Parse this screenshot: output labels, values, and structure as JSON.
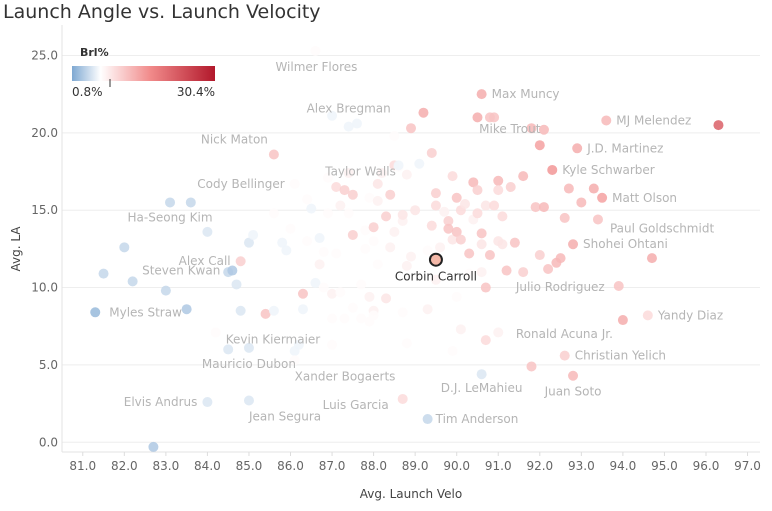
{
  "chart_data": {
    "type": "scatter",
    "title": "Launch Angle vs. Launch Velocity",
    "xlabel": "Avg. Launch Velo",
    "ylabel": "Avg. LA",
    "xlim": [
      80.5,
      97.3
    ],
    "ylim": [
      -0.5,
      26.0
    ],
    "x_ticks": [
      "81.0",
      "82.0",
      "83.0",
      "84.0",
      "85.0",
      "86.0",
      "87.0",
      "88.0",
      "89.0",
      "90.0",
      "91.0",
      "92.0",
      "93.0",
      "94.0",
      "95.0",
      "96.0",
      "97.0"
    ],
    "y_ticks": [
      "0.0",
      "5.0",
      "10.0",
      "15.0",
      "20.0",
      "25.0"
    ],
    "grid": "horizontal",
    "color_legend": {
      "title": "Brl%",
      "min_label": "0.8%",
      "max_label": "30.4%",
      "min": 0.8,
      "max": 30.4,
      "colors": [
        "#7ea8d2",
        "#ffffff",
        "#f18a8a",
        "#b2182b"
      ],
      "placement": "top-left"
    },
    "highlight": {
      "label": "Corbin Carroll",
      "x": 89.5,
      "y": 11.8,
      "brl": 12
    },
    "labeled_points": [
      {
        "label": "Wilmer Flores",
        "x": 86.6,
        "y": 25.3,
        "brl": 7
      },
      {
        "label": "Alex Bregman",
        "x": 87.4,
        "y": 20.4,
        "brl": 6
      },
      {
        "label": "Max Muncy",
        "x": 90.6,
        "y": 22.5,
        "brl": 14
      },
      {
        "label": "MJ Melendez",
        "x": 93.6,
        "y": 20.8,
        "brl": 13
      },
      {
        "label": "Mike Trout",
        "x": 92.0,
        "y": 19.2,
        "brl": 15
      },
      {
        "label": "Nick Maton",
        "x": 85.6,
        "y": 18.6,
        "brl": 12
      },
      {
        "label": "Taylor Walls",
        "x": 88.6,
        "y": 17.9,
        "brl": 6
      },
      {
        "label": "J.D. Martinez",
        "x": 92.9,
        "y": 19.0,
        "brl": 14
      },
      {
        "label": "Kyle Schwarber",
        "x": 92.3,
        "y": 17.6,
        "brl": 16
      },
      {
        "label": "Cody Bellinger",
        "x": 86.1,
        "y": 16.7,
        "brl": 7
      },
      {
        "label": "Matt Olson",
        "x": 93.5,
        "y": 15.8,
        "brl": 15
      },
      {
        "label": "Ha-Seong Kim",
        "x": 83.1,
        "y": 15.5,
        "brl": 4
      },
      {
        "label": "Paul Goldschmidt",
        "x": 93.4,
        "y": 14.4,
        "brl": 12
      },
      {
        "label": "Alex Call",
        "x": 84.8,
        "y": 11.7,
        "brl": 11
      },
      {
        "label": "Shohei Ohtani",
        "x": 92.8,
        "y": 12.8,
        "brl": 14
      },
      {
        "label": "Steven Kwan",
        "x": 84.6,
        "y": 11.1,
        "brl": 3
      },
      {
        "label": "Julio Rodriguez",
        "x": 93.9,
        "y": 10.1,
        "brl": 12
      },
      {
        "label": "Myles Straw",
        "x": 81.3,
        "y": 8.4,
        "brl": 2
      },
      {
        "label": "Yandy Diaz",
        "x": 94.6,
        "y": 8.2,
        "brl": 10
      },
      {
        "label": "Kevin Kiermaier",
        "x": 84.2,
        "y": 7.1,
        "brl": 7
      },
      {
        "label": "Ronald Acuna Jr.",
        "x": 94.0,
        "y": 7.9,
        "brl": 14
      },
      {
        "label": "Christian Yelich",
        "x": 92.6,
        "y": 5.6,
        "brl": 11
      },
      {
        "label": "Mauricio Dubon",
        "x": 85.0,
        "y": 6.1,
        "brl": 5
      },
      {
        "label": "Xander Bogaerts",
        "x": 86.1,
        "y": 5.3,
        "brl": 7
      },
      {
        "label": "D.J. LeMahieu",
        "x": 90.6,
        "y": 4.4,
        "brl": 5
      },
      {
        "label": "Juan Soto",
        "x": 92.8,
        "y": 4.3,
        "brl": 13
      },
      {
        "label": "Elvis Andrus",
        "x": 84.0,
        "y": 2.6,
        "brl": 5
      },
      {
        "label": "Luis Garcia",
        "x": 88.7,
        "y": 2.8,
        "brl": 10
      },
      {
        "label": "Jean Segura",
        "x": 85.0,
        "y": 2.7,
        "brl": 5
      },
      {
        "label": "Tim Anderson",
        "x": 89.3,
        "y": 1.5,
        "brl": 4
      }
    ],
    "other_points": [
      [
        82.7,
        -0.3,
        3
      ],
      [
        81.5,
        10.9,
        4
      ],
      [
        82.0,
        12.6,
        4
      ],
      [
        82.2,
        10.4,
        4
      ],
      [
        83.0,
        9.8,
        4
      ],
      [
        83.6,
        15.5,
        4
      ],
      [
        83.5,
        8.6,
        3
      ],
      [
        84.0,
        13.6,
        5
      ],
      [
        84.5,
        11.0,
        4
      ],
      [
        84.7,
        10.2,
        5
      ],
      [
        84.8,
        8.5,
        5
      ],
      [
        85.0,
        12.9,
        5
      ],
      [
        85.1,
        13.4,
        6
      ],
      [
        84.5,
        6.0,
        5
      ],
      [
        85.4,
        8.3,
        12
      ],
      [
        85.6,
        8.5,
        6
      ],
      [
        85.6,
        14.8,
        7
      ],
      [
        85.8,
        12.9,
        6
      ],
      [
        85.9,
        12.4,
        6
      ],
      [
        86.0,
        13.8,
        7
      ],
      [
        86.2,
        6.3,
        6
      ],
      [
        86.1,
        5.9,
        6
      ],
      [
        86.3,
        9.6,
        12
      ],
      [
        86.3,
        8.6,
        6
      ],
      [
        86.4,
        13.0,
        7
      ],
      [
        86.4,
        15.7,
        7
      ],
      [
        86.5,
        15.1,
        6
      ],
      [
        86.6,
        10.3,
        6
      ],
      [
        86.7,
        11.5,
        8
      ],
      [
        86.7,
        13.2,
        6
      ],
      [
        86.8,
        10.0,
        7
      ],
      [
        86.8,
        12.3,
        7
      ],
      [
        86.9,
        14.8,
        7
      ],
      [
        86.9,
        17.1,
        7
      ],
      [
        87.0,
        9.6,
        8
      ],
      [
        87.0,
        8.0,
        7
      ],
      [
        87.0,
        6.3,
        7
      ],
      [
        87.0,
        21.1,
        6
      ],
      [
        87.1,
        12.2,
        7
      ],
      [
        87.1,
        16.5,
        10
      ],
      [
        87.2,
        15.3,
        8
      ],
      [
        87.2,
        9.7,
        7
      ],
      [
        87.3,
        8.0,
        7
      ],
      [
        87.3,
        16.3,
        11
      ],
      [
        87.4,
        17.4,
        8
      ],
      [
        87.4,
        14.8,
        7
      ],
      [
        87.5,
        16.0,
        11
      ],
      [
        87.5,
        13.4,
        11
      ],
      [
        87.5,
        8.7,
        7
      ],
      [
        87.6,
        20.6,
        6
      ],
      [
        87.7,
        10.2,
        7
      ],
      [
        87.7,
        8.0,
        7
      ],
      [
        87.8,
        12.5,
        7
      ],
      [
        87.8,
        13.7,
        7
      ],
      [
        87.9,
        9.4,
        8
      ],
      [
        87.9,
        7.8,
        7
      ],
      [
        87.9,
        15.8,
        7
      ],
      [
        88.0,
        13.0,
        7
      ],
      [
        88.0,
        13.9,
        11
      ],
      [
        88.0,
        8.5,
        8
      ],
      [
        88.0,
        8.2,
        7
      ],
      [
        88.1,
        16.7,
        9
      ],
      [
        88.1,
        15.6,
        8
      ],
      [
        88.1,
        11.5,
        7
      ],
      [
        88.2,
        17.4,
        8
      ],
      [
        88.3,
        14.6,
        11
      ],
      [
        88.3,
        9.3,
        9
      ],
      [
        88.4,
        16.0,
        11
      ],
      [
        88.4,
        12.6,
        8
      ],
      [
        88.5,
        17.9,
        10
      ],
      [
        88.5,
        19.8,
        7
      ],
      [
        88.5,
        13.6,
        8
      ],
      [
        88.6,
        17.8,
        7
      ],
      [
        88.7,
        14.3,
        8
      ],
      [
        88.7,
        14.7,
        9
      ],
      [
        88.7,
        8.4,
        7
      ],
      [
        88.8,
        17.3,
        8
      ],
      [
        88.8,
        11.4,
        8
      ],
      [
        88.8,
        6.4,
        7
      ],
      [
        88.9,
        20.3,
        12
      ],
      [
        88.9,
        12.0,
        8
      ],
      [
        89.0,
        15.0,
        9
      ],
      [
        89.1,
        18.0,
        6
      ],
      [
        89.2,
        21.3,
        14
      ],
      [
        89.3,
        8.6,
        8
      ],
      [
        89.3,
        12.4,
        7
      ],
      [
        89.4,
        18.7,
        11
      ],
      [
        89.4,
        14.0,
        10
      ],
      [
        89.5,
        16.1,
        11
      ],
      [
        89.5,
        15.3,
        10
      ],
      [
        89.5,
        10.5,
        8
      ],
      [
        89.6,
        12.6,
        8
      ],
      [
        89.7,
        14.9,
        8
      ],
      [
        89.8,
        14.3,
        11
      ],
      [
        89.8,
        13.8,
        12
      ],
      [
        89.9,
        17.2,
        10
      ],
      [
        89.9,
        13.1,
        9
      ],
      [
        89.9,
        5.9,
        7
      ],
      [
        90.0,
        13.6,
        12
      ],
      [
        90.0,
        15.8,
        12
      ],
      [
        90.0,
        9.4,
        7
      ],
      [
        90.1,
        13.1,
        11
      ],
      [
        90.1,
        15.0,
        10
      ],
      [
        90.1,
        7.3,
        8
      ],
      [
        90.2,
        15.4,
        9
      ],
      [
        90.3,
        12.2,
        12
      ],
      [
        90.3,
        10.9,
        7
      ],
      [
        90.4,
        16.8,
        13
      ],
      [
        90.4,
        14.4,
        8
      ],
      [
        90.5,
        21.0,
        14
      ],
      [
        90.5,
        16.3,
        11
      ],
      [
        90.5,
        14.8,
        10
      ],
      [
        90.6,
        13.5,
        12
      ],
      [
        90.6,
        12.8,
        9
      ],
      [
        90.6,
        11.0,
        8
      ],
      [
        90.7,
        15.3,
        9
      ],
      [
        90.7,
        10.0,
        12
      ],
      [
        90.7,
        6.6,
        10
      ],
      [
        90.8,
        12.1,
        12
      ],
      [
        90.8,
        21.0,
        12
      ],
      [
        90.9,
        21.0,
        12
      ],
      [
        90.9,
        15.3,
        10
      ],
      [
        91.0,
        16.9,
        13
      ],
      [
        91.0,
        13.0,
        9
      ],
      [
        91.0,
        7.1,
        8
      ],
      [
        91.0,
        16.3,
        10
      ],
      [
        91.1,
        12.8,
        9
      ],
      [
        91.1,
        14.6,
        10
      ],
      [
        91.2,
        11.1,
        12
      ],
      [
        91.3,
        16.5,
        11
      ],
      [
        91.4,
        12.9,
        12
      ],
      [
        91.6,
        11.0,
        11
      ],
      [
        91.6,
        17.2,
        13
      ],
      [
        91.8,
        4.9,
        12
      ],
      [
        91.8,
        20.3,
        13
      ],
      [
        91.9,
        15.2,
        12
      ],
      [
        92.0,
        12.1,
        11
      ],
      [
        92.1,
        15.2,
        13
      ],
      [
        92.1,
        20.2,
        13
      ],
      [
        92.2,
        11.2,
        12
      ],
      [
        92.4,
        11.6,
        13
      ],
      [
        92.5,
        11.9,
        13
      ],
      [
        92.6,
        14.5,
        12
      ],
      [
        93.3,
        16.4,
        14
      ],
      [
        92.7,
        16.4,
        13
      ],
      [
        93.0,
        15.5,
        13
      ],
      [
        94.7,
        11.9,
        14
      ],
      [
        96.3,
        20.5,
        22
      ]
    ]
  }
}
